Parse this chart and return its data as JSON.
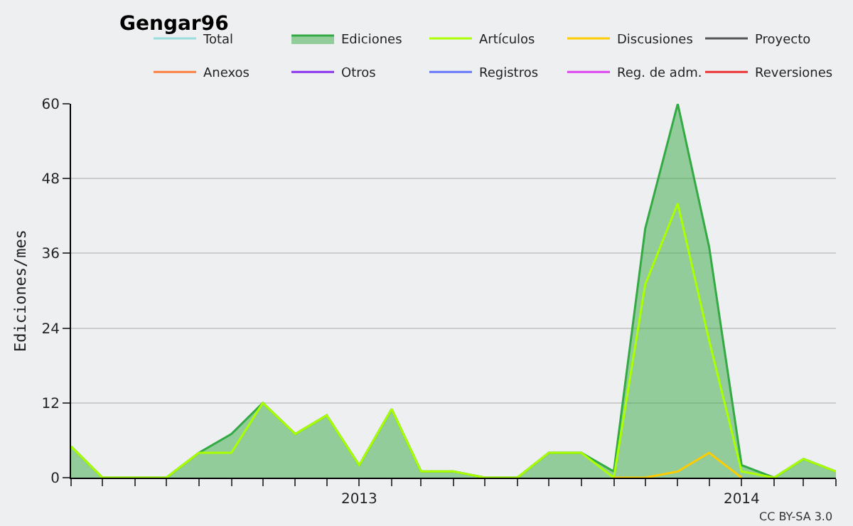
{
  "chart_data": {
    "type": "line",
    "title": "Gengar96",
    "ylabel": "Ediciones/mes",
    "x": [
      "2012-04",
      "2012-05",
      "2012-06",
      "2012-07",
      "2012-08",
      "2012-09",
      "2012-10",
      "2012-11",
      "2012-12",
      "2013-01",
      "2013-02",
      "2013-03",
      "2013-04",
      "2013-05",
      "2013-06",
      "2013-07",
      "2013-08",
      "2013-09",
      "2013-10",
      "2013-11",
      "2013-12",
      "2014-01",
      "2014-02",
      "2014-03",
      "2014-04"
    ],
    "series": [
      {
        "name": "Total",
        "color": "#99dddd",
        "values": [
          null,
          null,
          null,
          null,
          null,
          null,
          null,
          null,
          null,
          null,
          null,
          null,
          null,
          null,
          null,
          null,
          null,
          null,
          null,
          null,
          null,
          null,
          null,
          null,
          null
        ]
      },
      {
        "name": "Ediciones",
        "color": "#33aa44",
        "type": "area",
        "values": [
          5,
          0,
          0,
          0,
          4,
          7,
          12,
          7,
          10,
          2,
          11,
          1,
          1,
          0,
          0,
          4,
          4,
          1,
          40,
          60,
          37,
          2,
          0,
          3,
          1
        ]
      },
      {
        "name": "Artículos",
        "color": "#aaff00",
        "values": [
          5,
          0,
          0,
          0,
          4,
          4,
          12,
          7,
          10,
          2,
          11,
          1,
          1,
          0,
          0,
          4,
          4,
          0,
          31,
          44,
          22,
          1,
          0,
          3,
          1
        ]
      },
      {
        "name": "Discusiones",
        "color": "#ffcc00",
        "values": [
          null,
          null,
          null,
          null,
          null,
          null,
          null,
          null,
          null,
          null,
          null,
          null,
          null,
          null,
          null,
          null,
          null,
          0,
          0,
          1,
          4,
          0,
          null,
          null,
          null
        ]
      },
      {
        "name": "Proyecto",
        "color": "#555555",
        "values": [
          null,
          null,
          null,
          null,
          null,
          null,
          null,
          null,
          null,
          null,
          null,
          null,
          null,
          null,
          null,
          null,
          null,
          null,
          null,
          null,
          null,
          null,
          null,
          null,
          null
        ]
      },
      {
        "name": "Anexos",
        "color": "#ff7f40",
        "values": [
          null,
          null,
          null,
          null,
          null,
          null,
          null,
          null,
          null,
          null,
          null,
          null,
          null,
          null,
          null,
          null,
          null,
          null,
          null,
          null,
          null,
          null,
          null,
          null,
          null
        ]
      },
      {
        "name": "Otros",
        "color": "#8833ee",
        "values": [
          null,
          null,
          null,
          null,
          null,
          null,
          null,
          null,
          null,
          null,
          null,
          null,
          null,
          null,
          null,
          null,
          null,
          null,
          null,
          null,
          null,
          null,
          null,
          null,
          null
        ]
      },
      {
        "name": "Registros",
        "color": "#6677ff",
        "values": [
          null,
          null,
          null,
          null,
          null,
          null,
          null,
          null,
          null,
          null,
          null,
          null,
          null,
          null,
          null,
          null,
          null,
          null,
          null,
          null,
          null,
          null,
          null,
          null,
          null
        ]
      },
      {
        "name": "Reg. de adm.",
        "color": "#dd44ee",
        "values": [
          null,
          null,
          null,
          null,
          null,
          null,
          null,
          null,
          null,
          null,
          null,
          null,
          null,
          null,
          null,
          null,
          null,
          null,
          null,
          null,
          null,
          null,
          null,
          null,
          null
        ]
      },
      {
        "name": "Reversiones",
        "color": "#ee3333",
        "values": [
          null,
          null,
          null,
          null,
          null,
          null,
          null,
          null,
          null,
          null,
          null,
          null,
          null,
          null,
          null,
          null,
          null,
          null,
          null,
          null,
          null,
          null,
          null,
          null,
          null
        ]
      }
    ],
    "xlim": [
      "2012-04",
      "2014-04"
    ],
    "xticks": [
      {
        "value": "2012-04",
        "label": null
      },
      {
        "value": "2012-05",
        "label": null
      },
      {
        "value": "2012-06",
        "label": null
      },
      {
        "value": "2012-07",
        "label": null
      },
      {
        "value": "2012-08",
        "label": null
      },
      {
        "value": "2012-09",
        "label": null
      },
      {
        "value": "2012-10",
        "label": null
      },
      {
        "value": "2012-11",
        "label": null
      },
      {
        "value": "2012-12",
        "label": null
      },
      {
        "value": "2013-01",
        "label": "2013"
      },
      {
        "value": "2013-02",
        "label": null
      },
      {
        "value": "2013-03",
        "label": null
      },
      {
        "value": "2013-04",
        "label": null
      },
      {
        "value": "2013-05",
        "label": null
      },
      {
        "value": "2013-06",
        "label": null
      },
      {
        "value": "2013-07",
        "label": null
      },
      {
        "value": "2013-08",
        "label": null
      },
      {
        "value": "2013-09",
        "label": null
      },
      {
        "value": "2013-10",
        "label": null
      },
      {
        "value": "2013-11",
        "label": null
      },
      {
        "value": "2013-12",
        "label": null
      },
      {
        "value": "2014-01",
        "label": "2014"
      },
      {
        "value": "2014-02",
        "label": null
      },
      {
        "value": "2014-03",
        "label": null
      },
      {
        "value": "2014-04",
        "label": null
      }
    ],
    "ylim": [
      0,
      60
    ],
    "yticks": [
      0,
      12,
      24,
      36,
      48,
      60
    ],
    "grid": "y",
    "legend": "top right",
    "annotations": [
      "CC BY-SA 3.0"
    ]
  }
}
